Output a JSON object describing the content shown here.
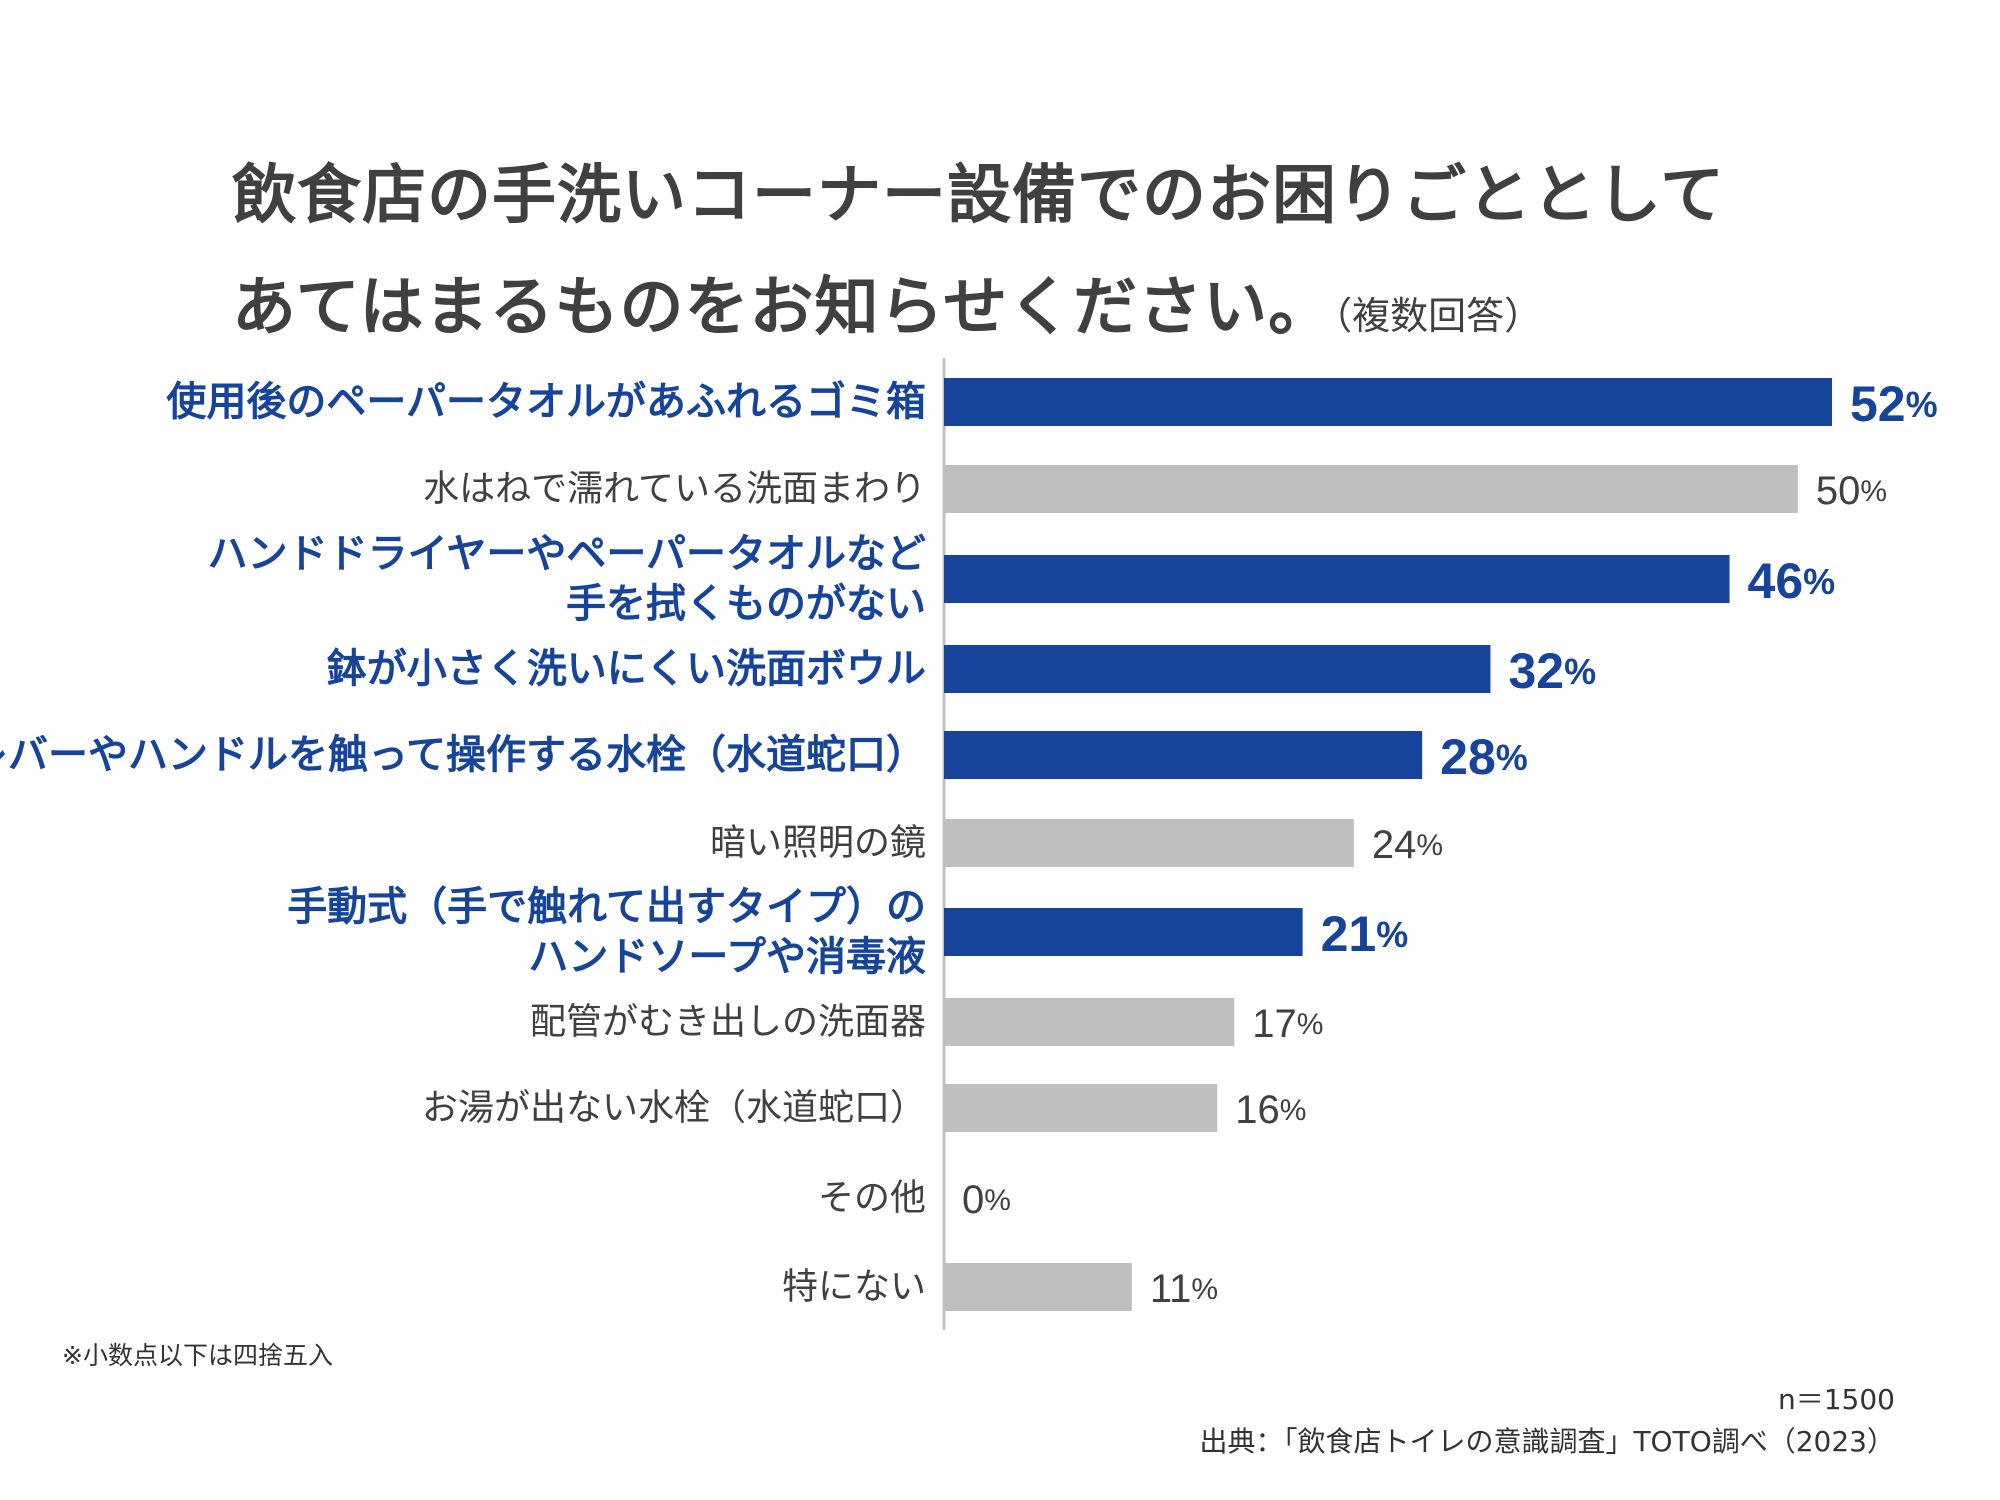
{
  "title": {
    "line1": "飲食店の手洗いコーナー設備でのお困りごととして",
    "line2": "あてはまるものをお知らせください。",
    "note": "（複数回答）"
  },
  "chart_data": {
    "type": "bar",
    "orientation": "horizontal",
    "unit": "%",
    "categories": [
      [
        "使用後のペーパータオルがあふれるゴミ箱"
      ],
      [
        "水はねで濡れている洗面まわり"
      ],
      [
        "ハンドドライヤーやペーパータオルなど",
        "手を拭くものがない"
      ],
      [
        "鉢が小さく洗いにくい洗面ボウル"
      ],
      [
        "レバーやハンドルを触って操作する水栓（水道蛇口）"
      ],
      [
        "暗い照明の鏡"
      ],
      [
        "手動式（手で触れて出すタイプ）の",
        "ハンドソープや消毒液"
      ],
      [
        "配管がむき出しの洗面器"
      ],
      [
        "お湯が出ない水栓（水道蛇口）"
      ],
      [
        "その他"
      ],
      [
        "特にない"
      ]
    ],
    "values": [
      52,
      50,
      46,
      32,
      28,
      24,
      21,
      17,
      16,
      0,
      11
    ],
    "highlighted": [
      true,
      false,
      true,
      true,
      true,
      false,
      true,
      false,
      false,
      false,
      false
    ],
    "colors": {
      "highlight": "#17449b",
      "normal": "#bfbfbf",
      "axis": "#bfbfbf",
      "normal_text": "#404040"
    },
    "xlim": [
      0,
      52
    ]
  },
  "footnote": "※小数点以下は四捨五入",
  "sample": "n＝1500",
  "source": "出典：「飲食店トイレの意識調査」TOTO調べ（2023）"
}
